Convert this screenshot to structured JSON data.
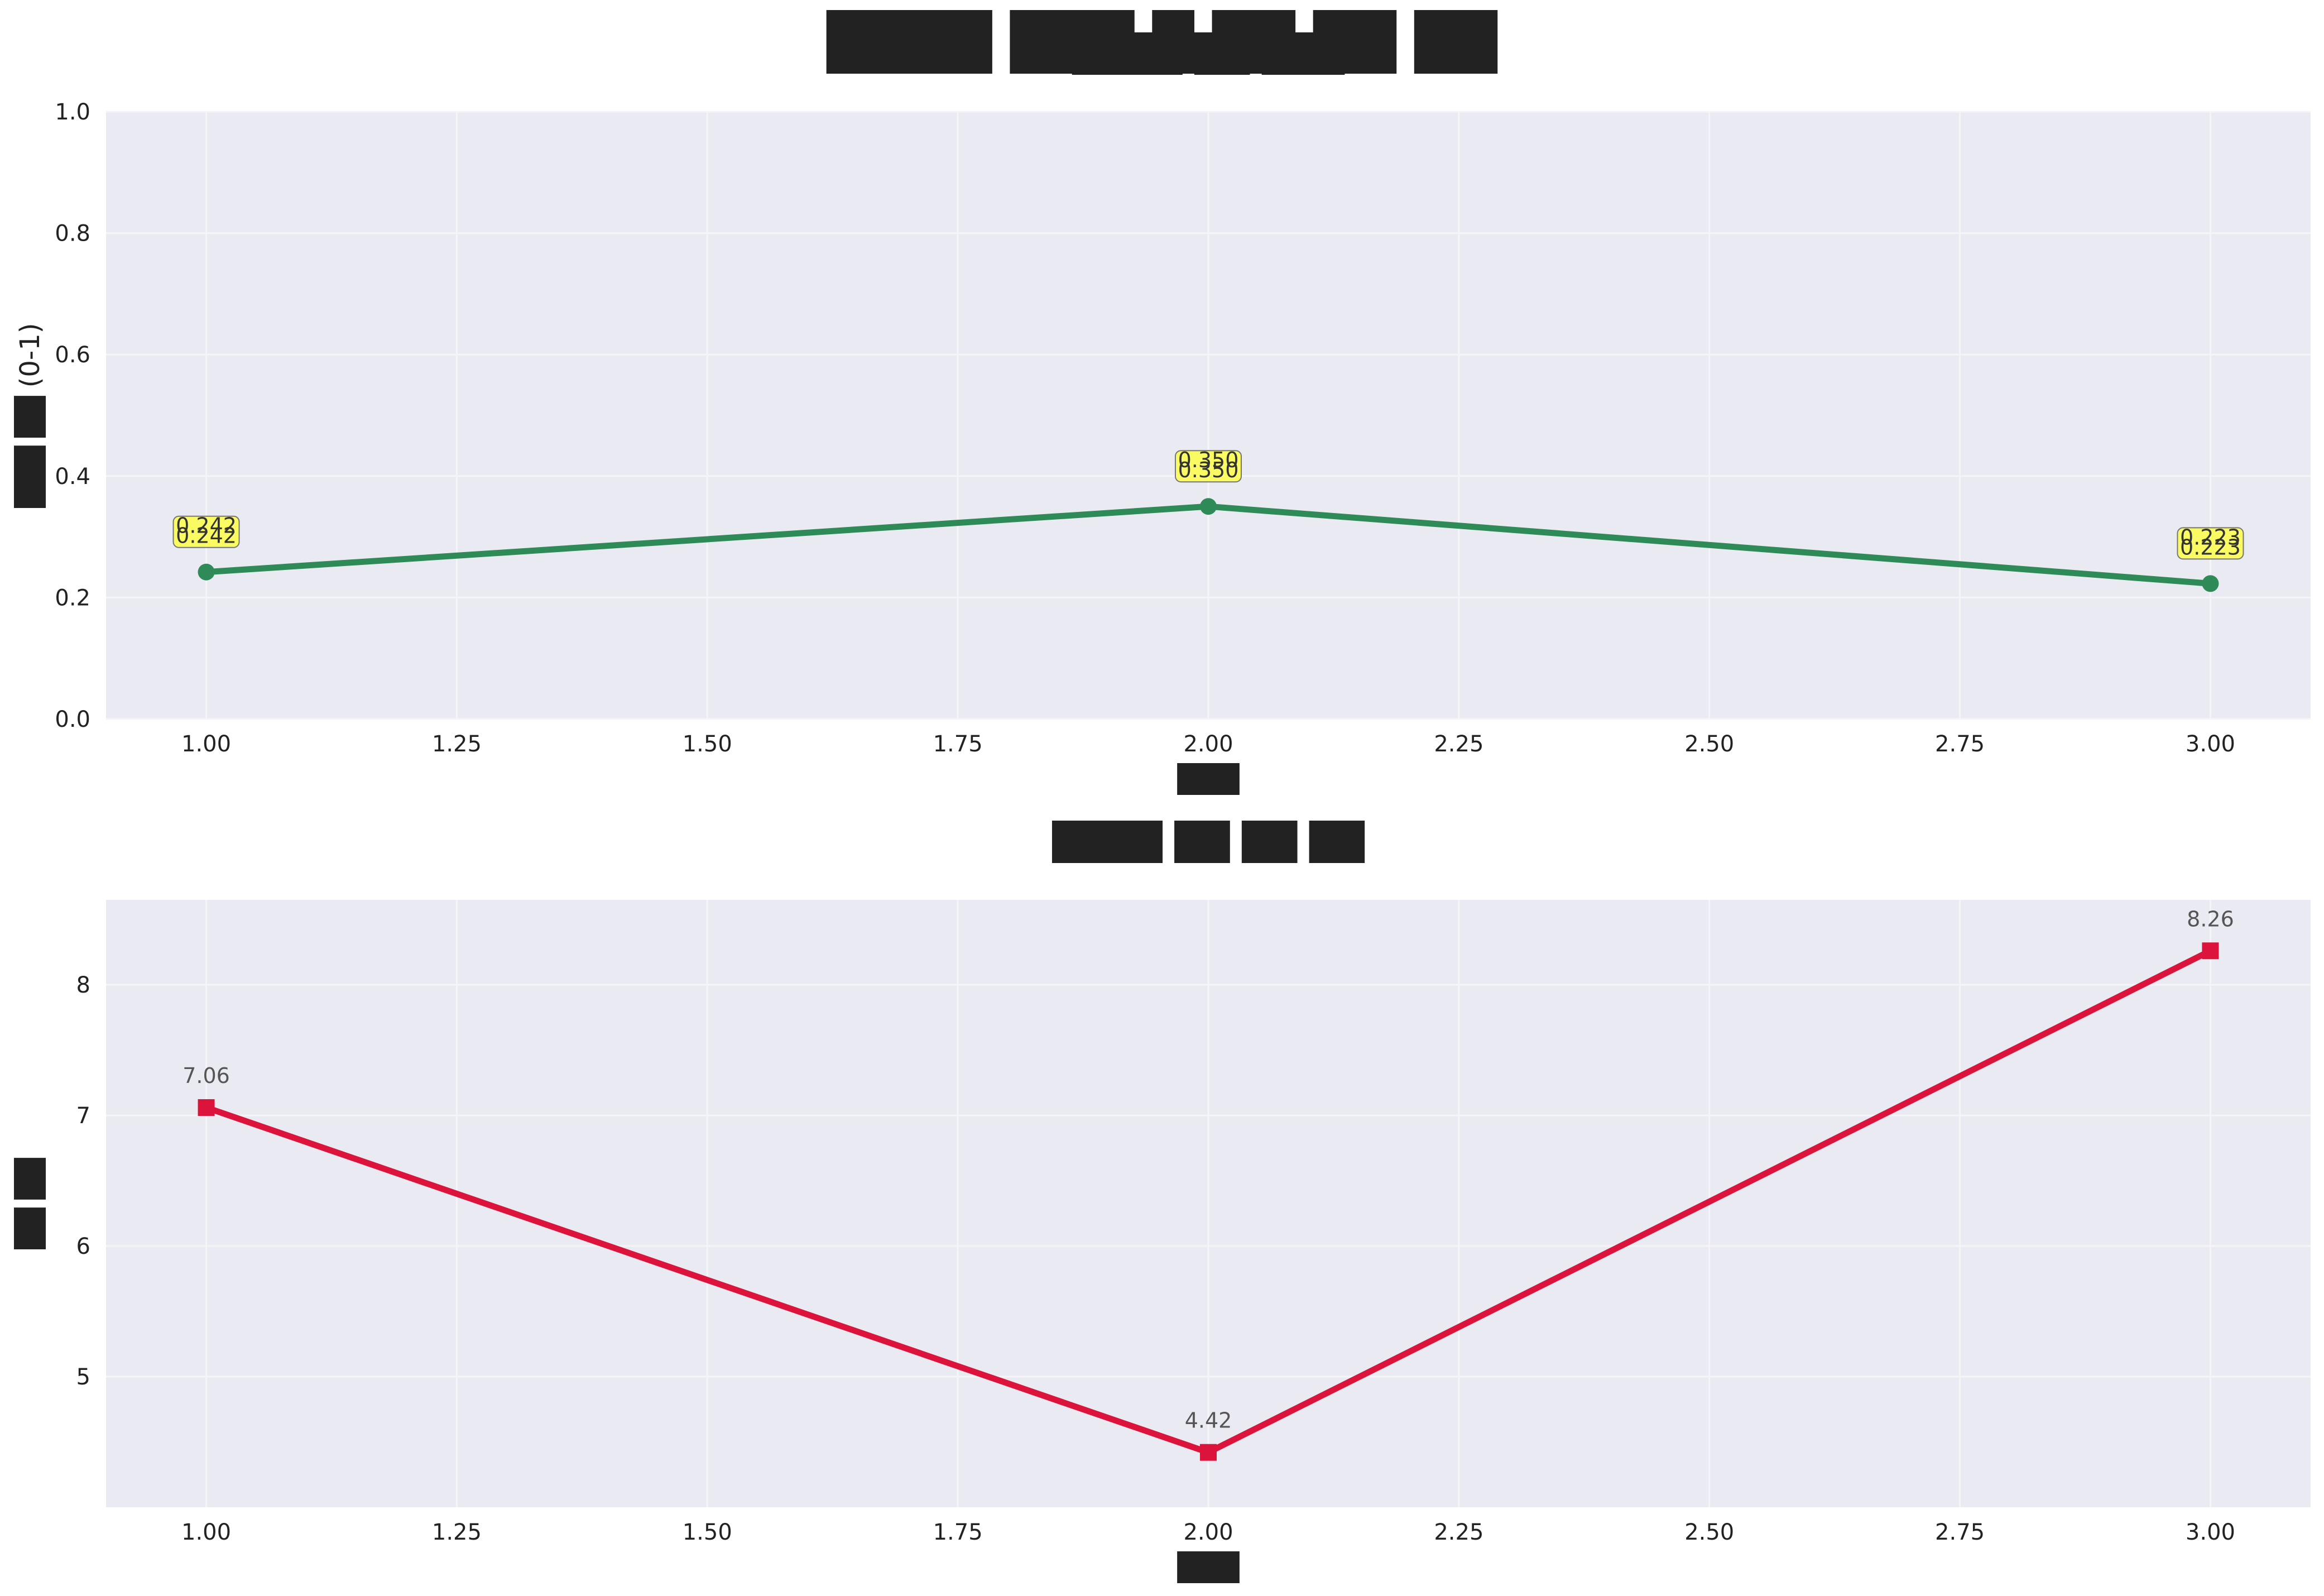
{
  "figure": {
    "title": "████ ███ █ ██ ██ ██"
  },
  "chart_data": [
    {
      "type": "line",
      "title": "████ ██ ███",
      "xlabel": "███",
      "ylabel": "███ ██ (0-1)",
      "xlim": [
        0.9,
        3.1
      ],
      "ylim": [
        0.0,
        1.0
      ],
      "xticks": [
        "1.00",
        "1.25",
        "1.50",
        "1.75",
        "2.00",
        "2.25",
        "2.50",
        "2.75",
        "3.00"
      ],
      "yticks": [
        "0.0",
        "0.2",
        "0.4",
        "0.6",
        "0.8",
        "1.0"
      ],
      "grid": true,
      "series": [
        {
          "x": [
            1,
            2,
            3
          ],
          "y": [
            0.242,
            0.35,
            0.223
          ],
          "labels": [
            "0.242",
            "0.350",
            "0.223"
          ],
          "color": "#2e8b57",
          "marker": "circle",
          "label_style": "yellow-box"
        }
      ]
    },
    {
      "type": "line",
      "title": "████ ██ ██ ██",
      "xlabel": "███",
      "ylabel": "██ ██",
      "xlim": [
        0.9,
        3.1
      ],
      "ylim": [
        4.0,
        8.65
      ],
      "xticks": [
        "1.00",
        "1.25",
        "1.50",
        "1.75",
        "2.00",
        "2.25",
        "2.50",
        "2.75",
        "3.00"
      ],
      "yticks": [
        "5",
        "6",
        "7",
        "8"
      ],
      "grid": true,
      "series": [
        {
          "x": [
            1,
            2,
            3
          ],
          "y": [
            7.06,
            4.42,
            8.26
          ],
          "labels": [
            "7.06",
            "4.42",
            "8.26"
          ],
          "color": "#dc143c",
          "marker": "square",
          "label_style": "plain"
        }
      ]
    }
  ]
}
